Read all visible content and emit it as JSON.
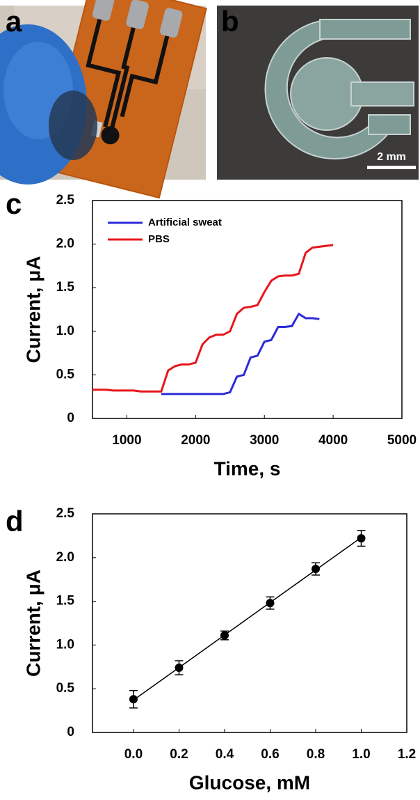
{
  "panel_labels": [
    "a",
    "b",
    "c",
    "d"
  ],
  "scale_bar": "2 mm",
  "chart_data": [
    {
      "type": "line",
      "x": [
        500,
        600,
        700,
        800,
        900,
        1000,
        1100,
        1200,
        1300,
        1400,
        1500,
        1600,
        1700,
        1800,
        1900,
        2000,
        2100,
        2200,
        2300,
        2400,
        2500,
        2600,
        2700,
        2800,
        2900,
        3000,
        3100,
        3200,
        3300,
        3400,
        3500,
        3600,
        3700,
        3800,
        3900,
        4000
      ],
      "series": [
        {
          "name": "Artificial sweat",
          "color": "#2b2bd9",
          "values": [
            null,
            null,
            null,
            null,
            null,
            null,
            null,
            null,
            null,
            null,
            0.28,
            0.28,
            0.28,
            0.28,
            0.28,
            0.28,
            0.28,
            0.28,
            0.28,
            0.28,
            0.3,
            0.48,
            0.5,
            0.7,
            0.72,
            0.88,
            0.9,
            1.05,
            1.05,
            1.06,
            1.2,
            1.15,
            1.15,
            1.14,
            null,
            null
          ]
        },
        {
          "name": "PBS",
          "color": "#e8161b",
          "values": [
            0.33,
            0.33,
            0.33,
            0.32,
            0.32,
            0.32,
            0.32,
            0.31,
            0.31,
            0.31,
            0.31,
            0.55,
            0.6,
            0.62,
            0.62,
            0.64,
            0.85,
            0.93,
            0.96,
            0.96,
            1.0,
            1.2,
            1.27,
            1.28,
            1.3,
            1.45,
            1.58,
            1.63,
            1.64,
            1.64,
            1.66,
            1.9,
            1.96,
            1.97,
            1.98,
            1.99
          ]
        }
      ],
      "x_label": "Time, s",
      "y_label": "Current, μA",
      "xlim": [
        500,
        5000
      ],
      "xticks": [
        1000,
        2000,
        3000,
        4000,
        5000
      ],
      "ylim": [
        0,
        2.5
      ],
      "yticks": [
        0,
        0.5,
        {
          "value": 1,
          "label": "1.0"
        },
        1.5,
        {
          "value": 2,
          "label": "2.0"
        },
        2.5
      ],
      "legend": "upper-left"
    },
    {
      "type": "scatter",
      "x": [
        0,
        0.2,
        0.4,
        0.6,
        0.8,
        1.0
      ],
      "values": [
        0.38,
        0.74,
        1.11,
        1.48,
        1.87,
        2.22
      ],
      "errors": [
        0.1,
        0.08,
        0.05,
        0.07,
        0.07,
        0.09
      ],
      "color": "#000000",
      "fit_line": {
        "x": [
          0,
          1.0
        ],
        "values": [
          0.37,
          2.23
        ]
      },
      "x_label": "Glucose, mM",
      "y_label": "Current, μA",
      "xlim": [
        -0.18,
        1.2
      ],
      "xticks": [
        {
          "value": 0,
          "label": "0.0"
        },
        0.2,
        0.4,
        0.6,
        0.8,
        {
          "value": 1,
          "label": "1.0"
        },
        1.2
      ],
      "ylim": [
        0,
        2.5
      ],
      "yticks": [
        0,
        0.5,
        {
          "value": 1,
          "label": "1.0"
        },
        1.5,
        {
          "value": 2,
          "label": "2.0"
        },
        2.5
      ]
    }
  ]
}
